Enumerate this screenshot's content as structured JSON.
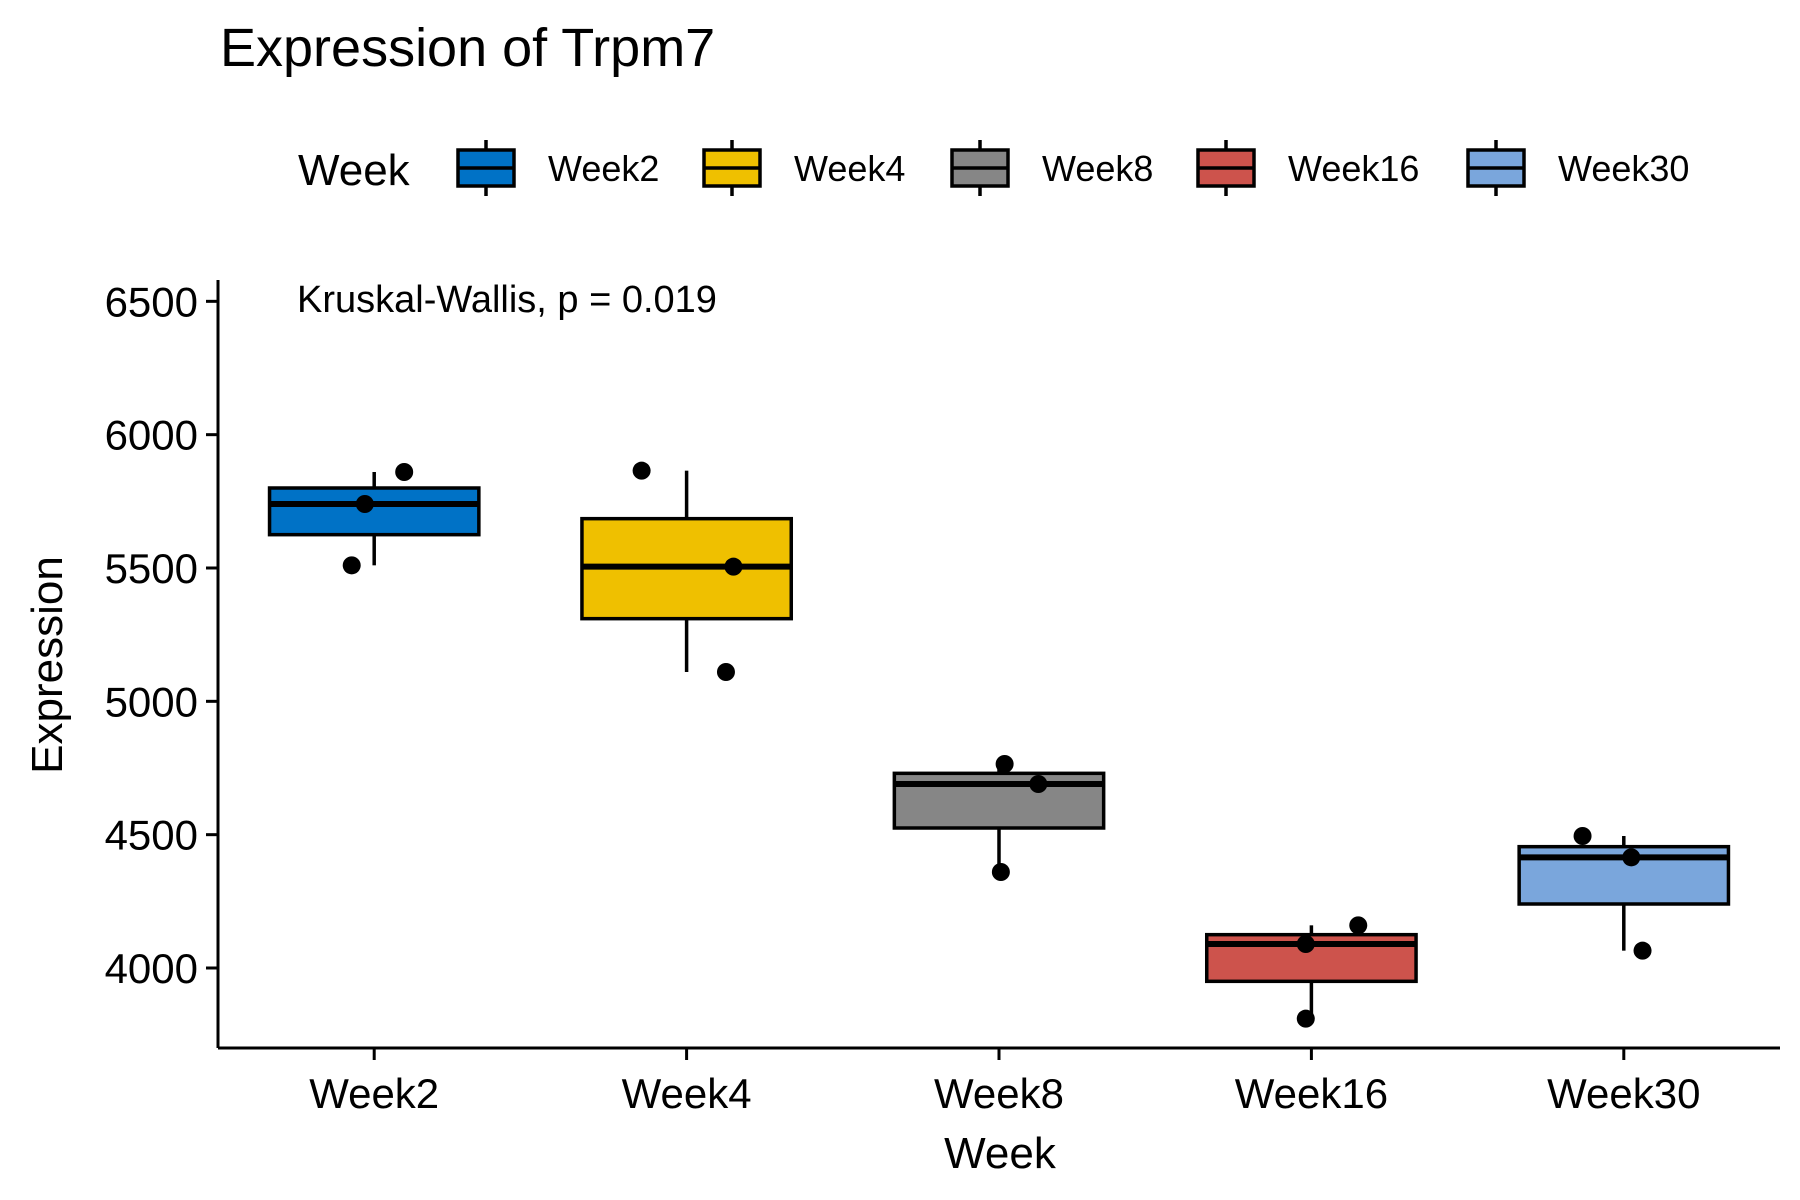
{
  "chart_data": {
    "type": "box",
    "title": "Expression of Trpm7",
    "xlabel": "Week",
    "ylabel": "Expression",
    "ylim": [
      3700,
      6580
    ],
    "yticks": [
      4000,
      4500,
      5000,
      5500,
      6000,
      6500
    ],
    "ytick_labels": [
      "4000",
      "4500",
      "5000",
      "5500",
      "6000",
      "6500"
    ],
    "grid": false,
    "legend": {
      "title": "Week",
      "position": "top",
      "items": [
        "Week2",
        "Week4",
        "Week8",
        "Week16",
        "Week30"
      ]
    },
    "annotation": "Kruskal-Wallis, p = 0.019",
    "categories": [
      "Week2",
      "Week4",
      "Week8",
      "Week16",
      "Week30"
    ],
    "colors": [
      "#0072C6",
      "#EFC000",
      "#868686",
      "#CD534C",
      "#7AA6DC"
    ],
    "boxes": [
      {
        "category": "Week2",
        "whisker_low": 5510,
        "q1": 5625,
        "median": 5740,
        "q3": 5800,
        "whisker_high": 5860,
        "points": [
          5860,
          5740,
          5510
        ]
      },
      {
        "category": "Week4",
        "whisker_low": 5110,
        "q1": 5310,
        "median": 5505,
        "q3": 5685,
        "whisker_high": 5865,
        "points": [
          5865,
          5505,
          5110
        ]
      },
      {
        "category": "Week8",
        "whisker_low": 4360,
        "q1": 4525,
        "median": 4690,
        "q3": 4730,
        "whisker_high": 4765,
        "points": [
          4765,
          4690,
          4360
        ]
      },
      {
        "category": "Week16",
        "whisker_low": 3810,
        "q1": 3950,
        "median": 4090,
        "q3": 4125,
        "whisker_high": 4160,
        "points": [
          4160,
          4090,
          3810
        ]
      },
      {
        "category": "Week30",
        "whisker_low": 4065,
        "q1": 4240,
        "median": 4415,
        "q3": 4455,
        "whisker_high": 4495,
        "points": [
          4495,
          4415,
          4065
        ]
      }
    ]
  }
}
